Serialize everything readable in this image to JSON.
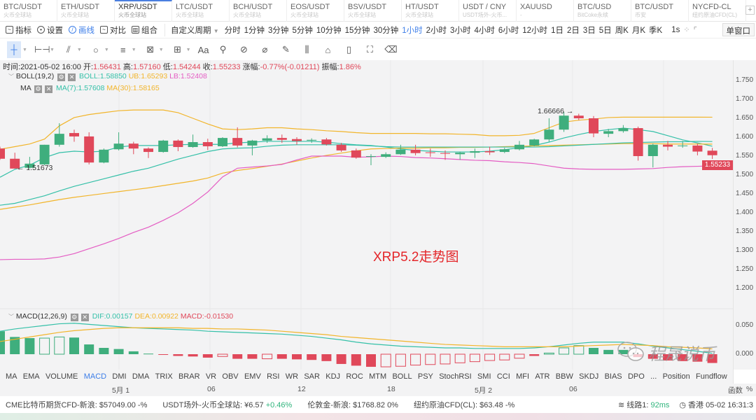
{
  "tabs": [
    {
      "title": "BTC/USDT",
      "sub": "火币全球站"
    },
    {
      "title": "ETH/USDT",
      "sub": "火币全球站"
    },
    {
      "title": "XRP/USDT",
      "sub": "火币全球站",
      "active": true
    },
    {
      "title": "LTC/USDT",
      "sub": "火币全球站"
    },
    {
      "title": "BCH/USDT",
      "sub": "火币全球站"
    },
    {
      "title": "EOS/USDT",
      "sub": "火币全球站"
    },
    {
      "title": "BSV/USDT",
      "sub": "火币全球站"
    },
    {
      "title": "HT/USDT",
      "sub": "火币全球站"
    },
    {
      "title": "USDT / CNY",
      "sub": "USDT场外-火币..."
    },
    {
      "title": "XAUUSD",
      "sub": "-"
    },
    {
      "title": "BTC/USD",
      "sub": "BitCoke永续"
    },
    {
      "title": "BTC/USDT",
      "sub": "币安"
    },
    {
      "title": "NYCFD-CL",
      "sub": "纽约原油CFD(CL)"
    }
  ],
  "add_tab": "+",
  "toolbar": {
    "indicator": "指标",
    "settings": "设置",
    "draw": "画线",
    "compare": "对比",
    "combo": "组合",
    "custom_period": "自定义周期",
    "periods": [
      "分时",
      "1分钟",
      "3分钟",
      "5分钟",
      "10分钟",
      "15分钟",
      "30分钟",
      "1小时",
      "2小时",
      "3小时",
      "4小时",
      "6小时",
      "12小时",
      "1日",
      "2日",
      "3日",
      "5日",
      "周K",
      "月K",
      "季K"
    ],
    "active_period": "1小时",
    "refresh": "1s",
    "window": "单窗口"
  },
  "draw_tools": [
    "crosshair-icon",
    "horizontal-segment-icon",
    "trend-line-icon",
    "ellipse-icon",
    "parallel-lines-icon",
    "pattern-icon",
    "measure-box-icon",
    "text-icon",
    "magnet-icon",
    "link-icon",
    "ruler-icon",
    "brush-icon",
    "lock-bars-icon",
    "lock-icon",
    "bookmark-icon",
    "screenshot-icon",
    "trash-icon"
  ],
  "text_tool": "Aa",
  "ohlc": {
    "time_label": "时间:",
    "time": "2021-05-02 16:00",
    "open_label": "开:",
    "open": "1.56431",
    "high_label": "高:",
    "high": "1.57160",
    "low_label": "低:",
    "low": "1.54244",
    "close_label": "收:",
    "close": "1.55233",
    "change_label": "涨幅:",
    "change": "-0.77%(-0.01211)",
    "amp_label": "振幅:",
    "amp": "1.86%"
  },
  "boll": {
    "name": "BOLL(19,2)",
    "mid": "BOLL:1.58850",
    "ub": "UB:1.65293",
    "lb": "LB:1.52408"
  },
  "ma": {
    "name": "MA",
    "ma7": "MA(7):1.57608",
    "ma30": "MA(30):1.58165"
  },
  "macd": {
    "name": "MACD(12,26,9)",
    "dif": "DIF:0.00157",
    "dea": "DEA:0.00922",
    "macd": "MACD:-0.01530"
  },
  "annotation": "XRP5.2走势图",
  "high_marker": "1.66666",
  "low_marker": "1.51673",
  "price_axis": [
    "1.750",
    "1.700",
    "1.650",
    "1.600",
    "1.550",
    "1.500",
    "1.450",
    "1.400",
    "1.350",
    "1.300",
    "1.250",
    "1.200"
  ],
  "current_price": "1.55233",
  "macd_axis": [
    "0.050",
    "0.000"
  ],
  "indicators": [
    "MA",
    "EMA",
    "VOLUME",
    "MACD",
    "DMI",
    "DMA",
    "TRIX",
    "BRAR",
    "VR",
    "OBV",
    "EMV",
    "RSI",
    "WR",
    "SAR",
    "KDJ",
    "ROC",
    "MTM",
    "BOLL",
    "PSY",
    "StochRSI",
    "SMI",
    "CCI",
    "MFI",
    "ATR",
    "BBW",
    "SKDJ",
    "BIAS",
    "DPO",
    "...",
    "Position",
    "Fundflow"
  ],
  "active_indicator": "MACD",
  "date_axis": [
    "5月 1",
    "06",
    "12",
    "18",
    "5月 2",
    "06"
  ],
  "date_axis_right": [
    "函数",
    "%"
  ],
  "status": {
    "items": [
      {
        "label": "CME比特币期货CFD-新浪:",
        "value": "$57049.00",
        "change": "-%"
      },
      {
        "label": "USDT场外-火币全球站:",
        "value": "¥6.57",
        "change": "+0.46%"
      },
      {
        "label": "伦敦金-新浪:",
        "value": "$1768.82",
        "change": "0%"
      },
      {
        "label": "纽约原油CFD(CL):",
        "value": "$63.48",
        "change": "-%"
      }
    ],
    "line_label": "线路1:",
    "latency": "92ms",
    "clock": "香港 05-02 16:31:3"
  },
  "watermark": "程晟说币",
  "colors": {
    "up": "#3fae7d",
    "down": "#e0485a",
    "accent": "#3d7ee8",
    "boll": "#34c0a8",
    "ub": "#f2b52b",
    "lb": "#e45cc3",
    "ma7": "#34c0a8",
    "ma30": "#f2b52b"
  },
  "chart_data": {
    "type": "candlestick",
    "ylim": [
      1.2,
      1.75
    ],
    "ohlc": [
      [
        1.57,
        1.575,
        1.54,
        1.543
      ],
      [
        1.543,
        1.559,
        1.517,
        1.517
      ],
      [
        1.519,
        1.548,
        1.5167,
        1.53
      ],
      [
        1.528,
        1.58,
        1.526,
        1.58
      ],
      [
        1.58,
        1.637,
        1.575,
        1.609
      ],
      [
        1.611,
        1.62,
        1.588,
        1.602
      ],
      [
        1.602,
        1.613,
        1.528,
        1.533
      ],
      [
        1.533,
        1.57,
        1.531,
        1.567
      ],
      [
        1.568,
        1.613,
        1.565,
        1.583
      ],
      [
        1.583,
        1.588,
        1.555,
        1.57
      ],
      [
        1.57,
        1.573,
        1.545,
        1.561
      ],
      [
        1.561,
        1.593,
        1.559,
        1.591
      ],
      [
        1.591,
        1.594,
        1.563,
        1.574
      ],
      [
        1.574,
        1.607,
        1.572,
        1.587
      ],
      [
        1.587,
        1.596,
        1.566,
        1.576
      ],
      [
        1.576,
        1.6,
        1.574,
        1.598
      ],
      [
        1.598,
        1.626,
        1.573,
        1.578
      ],
      [
        1.578,
        1.593,
        1.552,
        1.591
      ],
      [
        1.591,
        1.605,
        1.585,
        1.597
      ],
      [
        1.598,
        1.607,
        1.585,
        1.593
      ],
      [
        1.595,
        1.6,
        1.58,
        1.59
      ],
      [
        1.591,
        1.597,
        1.585,
        1.593
      ],
      [
        1.594,
        1.598,
        1.578,
        1.581
      ],
      [
        1.58,
        1.585,
        1.561,
        1.565
      ],
      [
        1.565,
        1.57,
        1.543,
        1.546
      ],
      [
        1.549,
        1.555,
        1.526,
        1.55
      ],
      [
        1.548,
        1.56,
        1.545,
        1.555
      ],
      [
        1.555,
        1.58,
        1.553,
        1.567
      ],
      [
        1.567,
        1.58,
        1.552,
        1.558
      ],
      [
        1.56,
        1.57,
        1.548,
        1.559
      ],
      [
        1.558,
        1.565,
        1.54,
        1.557
      ],
      [
        1.555,
        1.562,
        1.54,
        1.559
      ],
      [
        1.559,
        1.57,
        1.545,
        1.563
      ],
      [
        1.563,
        1.575,
        1.553,
        1.56
      ],
      [
        1.561,
        1.572,
        1.558,
        1.568
      ],
      [
        1.568,
        1.59,
        1.565,
        1.58
      ],
      [
        1.578,
        1.596,
        1.576,
        1.594
      ],
      [
        1.594,
        1.65,
        1.588,
        1.62
      ],
      [
        1.62,
        1.66666,
        1.614,
        1.657
      ],
      [
        1.657,
        1.662,
        1.645,
        1.65
      ],
      [
        1.65,
        1.656,
        1.6,
        1.61
      ],
      [
        1.609,
        1.622,
        1.6,
        1.616
      ],
      [
        1.616,
        1.632,
        1.612,
        1.624
      ],
      [
        1.624,
        1.628,
        1.538,
        1.55
      ],
      [
        1.55,
        1.583,
        1.52,
        1.58
      ],
      [
        1.58,
        1.59,
        1.565,
        1.575
      ],
      [
        1.577,
        1.59,
        1.572,
        1.578
      ],
      [
        1.578,
        1.583,
        1.552,
        1.562
      ],
      [
        1.56431,
        1.5716,
        1.54244,
        1.55233
      ]
    ],
    "series": [
      {
        "name": "MA(7)",
        "color": "#34c0a8",
        "values": [
          1.494,
          1.515,
          1.526,
          1.546,
          1.559,
          1.563,
          1.561,
          1.563,
          1.574,
          1.578,
          1.578,
          1.578,
          1.58,
          1.581,
          1.581,
          1.581,
          1.585,
          1.587,
          1.589,
          1.589,
          1.589,
          1.589,
          1.587,
          1.583,
          1.58,
          1.578,
          1.574,
          1.569,
          1.565,
          1.563,
          1.561,
          1.561,
          1.561,
          1.563,
          1.567,
          1.572,
          1.578,
          1.587,
          1.598,
          1.607,
          1.615,
          1.62,
          1.624,
          1.62,
          1.615,
          1.604,
          1.593,
          1.585,
          1.57608
        ]
      },
      {
        "name": "MA(30)",
        "color": "#f2b52b",
        "values": [
          1.409,
          1.415,
          1.421,
          1.428,
          1.435,
          1.441,
          1.446,
          1.451,
          1.456,
          1.461,
          1.466,
          1.472,
          1.478,
          1.484,
          1.492,
          1.505,
          1.512,
          1.517,
          1.523,
          1.529,
          1.537,
          1.545,
          1.552,
          1.558,
          1.564,
          1.569,
          1.57,
          1.571,
          1.571,
          1.572,
          1.572,
          1.573,
          1.573,
          1.574,
          1.575,
          1.576,
          1.577,
          1.578,
          1.579,
          1.58,
          1.581,
          1.582,
          1.583,
          1.583,
          1.583,
          1.582,
          1.582,
          1.582,
          1.58165
        ]
      },
      {
        "name": "BOLL",
        "color": "#34c0a8",
        "values": [
          1.42,
          1.425,
          1.435,
          1.445,
          1.458,
          1.47,
          1.48,
          1.49,
          1.5,
          1.51,
          1.518,
          1.53,
          1.542,
          1.552,
          1.562,
          1.569,
          1.571,
          1.572,
          1.576,
          1.579,
          1.58,
          1.58,
          1.58,
          1.58,
          1.579,
          1.577,
          1.575,
          1.574,
          1.574,
          1.574,
          1.574,
          1.574,
          1.574,
          1.574,
          1.574,
          1.574,
          1.574,
          1.575,
          1.577,
          1.579,
          1.581,
          1.583,
          1.585,
          1.586,
          1.587,
          1.588,
          1.588,
          1.589,
          1.5885
        ]
      },
      {
        "name": "UB",
        "color": "#f2b52b",
        "values": [
          1.568,
          1.575,
          1.582,
          1.595,
          1.63,
          1.652,
          1.66,
          1.665,
          1.67,
          1.672,
          1.672,
          1.672,
          1.665,
          1.65,
          1.635,
          1.622,
          1.62,
          1.622,
          1.625,
          1.625,
          1.622,
          1.62,
          1.617,
          1.615,
          1.612,
          1.61,
          1.61,
          1.61,
          1.61,
          1.609,
          1.609,
          1.608,
          1.607,
          1.604,
          1.604,
          1.605,
          1.61,
          1.625,
          1.64,
          1.645,
          1.648,
          1.652,
          1.653,
          1.653,
          1.653,
          1.653,
          1.653,
          1.653,
          1.65293
        ]
      },
      {
        "name": "LB",
        "color": "#e45cc3",
        "values": [
          1.276,
          1.277,
          1.277,
          1.278,
          1.283,
          1.292,
          1.305,
          1.318,
          1.332,
          1.348,
          1.362,
          1.38,
          1.4,
          1.425,
          1.455,
          1.495,
          1.518,
          1.521,
          1.524,
          1.528,
          1.54,
          1.55,
          1.55,
          1.55,
          1.547,
          1.548,
          1.55,
          1.549,
          1.546,
          1.545,
          1.543,
          1.541,
          1.539,
          1.538,
          1.535,
          1.533,
          1.53,
          1.524,
          1.518,
          1.516,
          1.515,
          1.515,
          1.515,
          1.516,
          1.517,
          1.52,
          1.522,
          1.523,
          1.52408
        ]
      }
    ],
    "macd": {
      "ylim": [
        -0.025,
        0.06
      ],
      "hist": [
        0.04,
        0.03,
        0.028,
        0.028,
        0.03,
        0.029,
        0.017,
        0.011,
        0.009,
        0.005,
        0.001,
        -0.001,
        -0.003,
        -0.004,
        -0.006,
        -0.004,
        -0.008,
        -0.008,
        -0.008,
        -0.008,
        -0.009,
        -0.01,
        -0.012,
        -0.017,
        -0.02,
        -0.022,
        -0.022,
        -0.021,
        -0.019,
        -0.018,
        -0.017,
        -0.015,
        -0.013,
        -0.011,
        -0.01,
        -0.007,
        -0.003,
        0.002,
        0.011,
        0.015,
        0.011,
        0.0075,
        0.0075,
        -0.005,
        -0.008,
        -0.011,
        -0.012,
        -0.013,
        -0.0153
      ],
      "hollow": [
        0,
        0,
        0,
        1,
        1,
        0,
        0,
        0,
        0,
        0,
        0,
        0,
        0,
        0,
        0,
        1,
        0,
        0,
        1,
        0,
        0,
        0,
        0,
        0,
        0,
        0,
        1,
        1,
        1,
        1,
        1,
        1,
        1,
        1,
        1,
        1,
        0,
        1,
        1,
        1,
        0,
        0,
        0,
        0,
        0,
        0,
        0,
        0,
        0
      ],
      "dif": [
        0.04,
        0.044,
        0.047,
        0.05,
        0.053,
        0.054,
        0.052,
        0.05,
        0.048,
        0.046,
        0.045,
        0.044,
        0.043,
        0.042,
        0.04,
        0.039,
        0.038,
        0.037,
        0.036,
        0.035,
        0.033,
        0.031,
        0.028,
        0.025,
        0.021,
        0.018,
        0.016,
        0.014,
        0.013,
        0.012,
        0.011,
        0.011,
        0.01,
        0.01,
        0.01,
        0.01,
        0.011,
        0.013,
        0.016,
        0.019,
        0.021,
        0.021,
        0.021,
        0.018,
        0.014,
        0.011,
        0.008,
        0.005,
        0.00157
      ],
      "dea": [
        0.022,
        0.026,
        0.03,
        0.034,
        0.038,
        0.041,
        0.043,
        0.045,
        0.046,
        0.046,
        0.046,
        0.046,
        0.046,
        0.045,
        0.045,
        0.044,
        0.044,
        0.043,
        0.042,
        0.04,
        0.038,
        0.036,
        0.034,
        0.031,
        0.029,
        0.027,
        0.025,
        0.023,
        0.021,
        0.019,
        0.017,
        0.016,
        0.015,
        0.014,
        0.013,
        0.013,
        0.013,
        0.013,
        0.013,
        0.014,
        0.015,
        0.016,
        0.017,
        0.016,
        0.015,
        0.013,
        0.012,
        0.011,
        0.00922
      ]
    }
  }
}
